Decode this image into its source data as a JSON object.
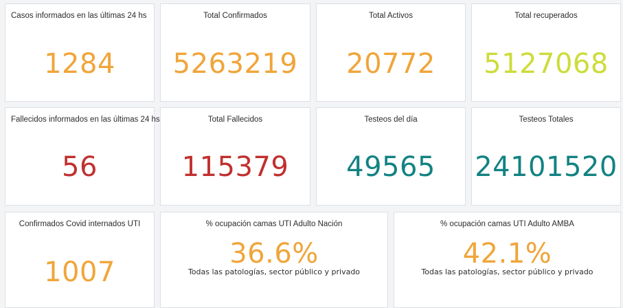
{
  "colors": {
    "orange": "#f0a53a",
    "lime": "#cddc3a",
    "red": "#c0302f",
    "teal": "#128282"
  },
  "cards": [
    {
      "title": "Casos informados en las últimas 24 hs",
      "value": "1284"
    },
    {
      "title": "Total Confirmados",
      "value": "5263219"
    },
    {
      "title": "Total Activos",
      "value": "20772"
    },
    {
      "title": "Total recuperados",
      "value": "5127068"
    },
    {
      "title": "Fallecidos informados en las últimas 24 hs",
      "value": "56"
    },
    {
      "title": "Total Fallecidos",
      "value": "115379"
    },
    {
      "title": "Testeos del día",
      "value": "49565"
    },
    {
      "title": "Testeos Totales",
      "value": "24101520"
    },
    {
      "title": "Confirmados Covid internados UTI",
      "value": "1007"
    },
    {
      "title": "% ocupación camas UTI Adulto Nación",
      "value": "36.6%",
      "note": "Todas las patologías, sector público y privado"
    },
    {
      "title": "% ocupación camas UTI Adulto AMBA",
      "value": "42.1%",
      "note": "Todas las patologías, sector público y privado"
    }
  ]
}
